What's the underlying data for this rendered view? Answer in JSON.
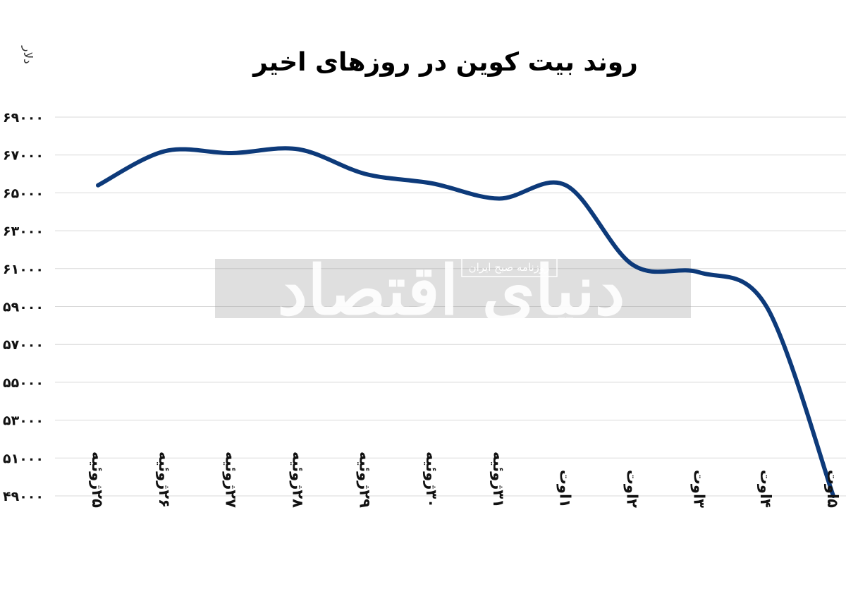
{
  "chart_data": {
    "type": "line",
    "title": "روند بیت کوین در روزهای اخیر",
    "ylabel": "دلار",
    "xlabel": "",
    "ylim": [
      49000,
      69000
    ],
    "yticks": [
      69000,
      67000,
      65000,
      63000,
      61000,
      59000,
      57000,
      55000,
      53000,
      51000,
      49000
    ],
    "ytick_labels": [
      "۶۹۰۰۰",
      "۶۷۰۰۰",
      "۶۵۰۰۰",
      "۶۳۰۰۰",
      "۶۱۰۰۰",
      "۵۹۰۰۰",
      "۵۷۰۰۰",
      "۵۵۰۰۰",
      "۵۳۰۰۰",
      "۵۱۰۰۰",
      "۴۹۰۰۰"
    ],
    "categories": [
      "۲۵ژوئیه",
      "۲۶ژوئیه",
      "۲۷ژوئیه",
      "۲۸ژوئیه",
      "۲۹ژوئیه",
      "۳۰ژوئیه",
      "۳۱ژوئیه",
      "۱اوت",
      "۲اوت",
      "۳اوت",
      "۴اوت",
      "۵اوت"
    ],
    "series": [
      {
        "values": [
          65400,
          67200,
          67100,
          67300,
          66000,
          65500,
          64700,
          65400,
          61200,
          60800,
          59000,
          49000
        ]
      }
    ],
    "grid": true,
    "legend": "none",
    "line_color": "#0d3a7a"
  },
  "watermark": {
    "brand_text": "دنیای اقتصاد",
    "tagline": "روزنامه صبح ایران"
  }
}
